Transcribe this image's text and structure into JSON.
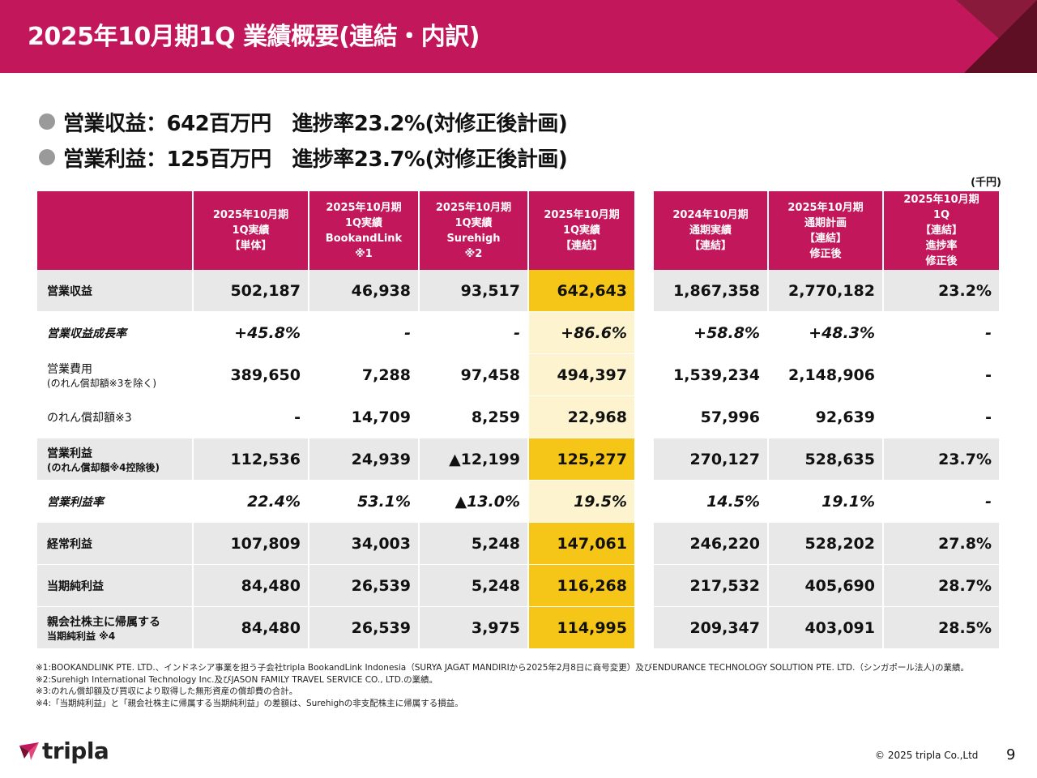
{
  "title": "2025年10月期1Q 業績概要(連結・内訳)",
  "bullets": [
    "営業収益：642百万円　進捗率23.2%(対修正後計画)",
    "営業利益：125百万円　進捗率23.7%(対修正後計画)"
  ],
  "unit": "(千円)",
  "headers": [
    "",
    "2025年10月期\n1Q実績\n【単体】",
    "2025年10月期\n1Q実績\nBookandLink\n※1",
    "2025年10月期\n1Q実績\nSurehigh\n※2",
    "2025年10月期\n1Q実績\n【連結】",
    "2024年10月期\n通期実績\n【連結】",
    "2025年10月期\n通期計画\n【連結】\n修正後",
    "2025年10月期\n1Q\n【連結】\n進捗率\n修正後"
  ],
  "rows": [
    {
      "label": "営業収益",
      "sub": "",
      "values": [
        "502,187",
        "46,938",
        "93,517",
        "642,643",
        "1,867,358",
        "2,770,182",
        "23.2%"
      ]
    },
    {
      "label": "営業収益成長率",
      "sub": "",
      "values": [
        "+45.8%",
        "-",
        "-",
        "+86.6%",
        "+58.8%",
        "+48.3%",
        "-"
      ]
    },
    {
      "label": "営業費用",
      "sub": "(のれん償却額※3を除く)",
      "values": [
        "389,650",
        "7,288",
        "97,458",
        "494,397",
        "1,539,234",
        "2,148,906",
        "-"
      ]
    },
    {
      "label": "のれん償却額※3",
      "sub": "",
      "values": [
        "-",
        "14,709",
        "8,259",
        "22,968",
        "57,996",
        "92,639",
        "-"
      ]
    },
    {
      "label": "営業利益",
      "sub": "(のれん償却額※4控除後)",
      "values": [
        "112,536",
        "24,939",
        "▲12,199",
        "125,277",
        "270,127",
        "528,635",
        "23.7%"
      ]
    },
    {
      "label": "営業利益率",
      "sub": "",
      "values": [
        "22.4%",
        "53.1%",
        "▲13.0%",
        "19.5%",
        "14.5%",
        "19.1%",
        "-"
      ]
    },
    {
      "label": "経常利益",
      "sub": "",
      "values": [
        "107,809",
        "34,003",
        "5,248",
        "147,061",
        "246,220",
        "528,202",
        "27.8%"
      ]
    },
    {
      "label": "当期純利益",
      "sub": "",
      "values": [
        "84,480",
        "26,539",
        "5,248",
        "116,268",
        "217,532",
        "405,690",
        "28.7%"
      ]
    },
    {
      "label": "親会社株主に帰属する",
      "sub": "当期純利益 ※4",
      "values": [
        "84,480",
        "26,539",
        "3,975",
        "114,995",
        "209,347",
        "403,091",
        "28.5%"
      ]
    }
  ],
  "notes": [
    "※1:BOOKANDLINK PTE. LTD.、インドネシア事業を担う子会社tripla BookandLink Indonesia（SURYA JAGAT MANDIRIから2025年2月8日に商号変更）及びENDURANCE TECHNOLOGY SOLUTION PTE. LTD.（シンガポール法人)の業績。",
    "※2:Surehigh International Technology Inc.及びJASON FAMILY TRAVEL SERVICE CO., LTD.の業績。",
    "※3:のれん償却額及び買収により取得した無形資産の償却費の合計。",
    "※4:「当期純利益」と「親会社株主に帰属する当期純利益」の差額は、Surehighの非支配株主に帰属する損益。"
  ],
  "logo_text": "tripla",
  "copyright": "© 2025 tripla Co.,Ltd",
  "page_number": "9",
  "colors": {
    "brand": "#c2185b",
    "highlight": "#f5c518",
    "highlight_light": "#fdf4cf",
    "row_shade": "#e8e8e8"
  }
}
